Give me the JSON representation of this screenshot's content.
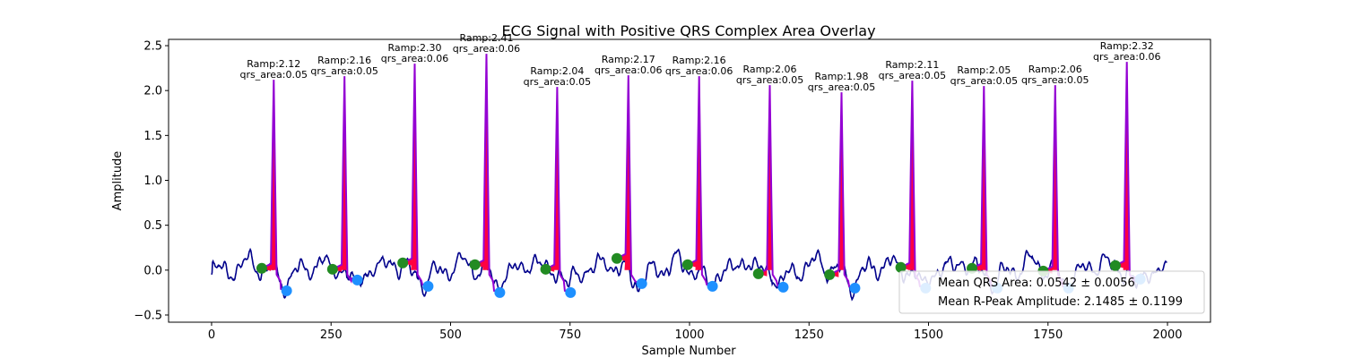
{
  "chart_data": {
    "type": "line",
    "title": "ECG Signal with Positive QRS Complex Area Overlay",
    "xlabel": "Sample Number",
    "ylabel": "Amplitude",
    "xlim": [
      -90,
      2090
    ],
    "ylim": [
      -0.58,
      2.57
    ],
    "xticks": [
      0,
      250,
      500,
      750,
      1000,
      1250,
      1500,
      1750,
      2000
    ],
    "yticks": [
      -0.5,
      0.0,
      0.5,
      1.0,
      1.5,
      2.0,
      2.5
    ],
    "xtick_labels": [
      "0",
      "250",
      "500",
      "750",
      "1000",
      "1250",
      "1500",
      "1750",
      "2000"
    ],
    "ytick_labels": [
      "−0.5",
      "0.0",
      "0.5",
      "1.0",
      "1.5",
      "2.0",
      "2.5"
    ],
    "grid": false,
    "colors": {
      "ecg": "#00008b",
      "qrs_line": "#9400d3",
      "qrs_fill": "#ff0040",
      "onset_marker": "#228b22",
      "offset_marker": "#1e90ff"
    },
    "beats": [
      {
        "r_x": 130,
        "r_amp": 2.12,
        "qrs_area": 0.05,
        "onset": [
          105,
          0.02
        ],
        "offset": [
          157,
          -0.23
        ],
        "ramp_label": "Ramp:2.12",
        "area_label": "qrs_area:0.05"
      },
      {
        "r_x": 278,
        "r_amp": 2.16,
        "qrs_area": 0.05,
        "onset": [
          253,
          0.01
        ],
        "offset": [
          305,
          -0.11
        ],
        "ramp_label": "Ramp:2.16",
        "area_label": "qrs_area:0.05"
      },
      {
        "r_x": 425,
        "r_amp": 2.3,
        "qrs_area": 0.06,
        "onset": [
          400,
          0.08
        ],
        "offset": [
          453,
          -0.18
        ],
        "ramp_label": "Ramp:2.30",
        "area_label": "qrs_area:0.06"
      },
      {
        "r_x": 575,
        "r_amp": 2.41,
        "qrs_area": 0.06,
        "onset": [
          551,
          0.06
        ],
        "offset": [
          603,
          -0.25
        ],
        "ramp_label": "Ramp:2.41",
        "area_label": "qrs_area:0.06"
      },
      {
        "r_x": 723,
        "r_amp": 2.04,
        "qrs_area": 0.05,
        "onset": [
          699,
          0.01
        ],
        "offset": [
          751,
          -0.25
        ],
        "ramp_label": "Ramp:2.04",
        "area_label": "qrs_area:0.05"
      },
      {
        "r_x": 872,
        "r_amp": 2.17,
        "qrs_area": 0.06,
        "onset": [
          848,
          0.13
        ],
        "offset": [
          900,
          -0.15
        ],
        "ramp_label": "Ramp:2.17",
        "area_label": "qrs_area:0.06"
      },
      {
        "r_x": 1020,
        "r_amp": 2.16,
        "qrs_area": 0.06,
        "onset": [
          996,
          0.06
        ],
        "offset": [
          1048,
          -0.18
        ],
        "ramp_label": "Ramp:2.16",
        "area_label": "qrs_area:0.06"
      },
      {
        "r_x": 1168,
        "r_amp": 2.06,
        "qrs_area": 0.05,
        "onset": [
          1144,
          -0.04
        ],
        "offset": [
          1196,
          -0.19
        ],
        "ramp_label": "Ramp:2.06",
        "area_label": "qrs_area:0.05"
      },
      {
        "r_x": 1318,
        "r_amp": 1.98,
        "qrs_area": 0.05,
        "onset": [
          1293,
          -0.05
        ],
        "offset": [
          1346,
          -0.2
        ],
        "ramp_label": "Ramp:1.98",
        "area_label": "qrs_area:0.05"
      },
      {
        "r_x": 1466,
        "r_amp": 2.11,
        "qrs_area": 0.05,
        "onset": [
          1442,
          0.03
        ],
        "offset": [
          1494,
          -0.2
        ],
        "ramp_label": "Ramp:2.11",
        "area_label": "qrs_area:0.05"
      },
      {
        "r_x": 1616,
        "r_amp": 2.05,
        "qrs_area": 0.05,
        "onset": [
          1591,
          0.02
        ],
        "offset": [
          1644,
          -0.2
        ],
        "ramp_label": "Ramp:2.05",
        "area_label": "qrs_area:0.05"
      },
      {
        "r_x": 1765,
        "r_amp": 2.06,
        "qrs_area": 0.05,
        "onset": [
          1740,
          -0.01
        ],
        "offset": [
          1793,
          -0.2
        ],
        "ramp_label": "Ramp:2.06",
        "area_label": "qrs_area:0.05"
      },
      {
        "r_x": 1915,
        "r_amp": 2.32,
        "qrs_area": 0.06,
        "onset": [
          1891,
          0.05
        ],
        "offset": [
          1943,
          -0.1
        ],
        "ramp_label": "Ramp:2.32",
        "area_label": "qrs_area:0.06"
      }
    ],
    "legend": {
      "placement": "lower-right",
      "entries": [
        "Mean QRS Area: 0.0542 ± 0.0056",
        "Mean R-Peak Amplitude: 2.1485 ± 0.1199"
      ]
    }
  }
}
